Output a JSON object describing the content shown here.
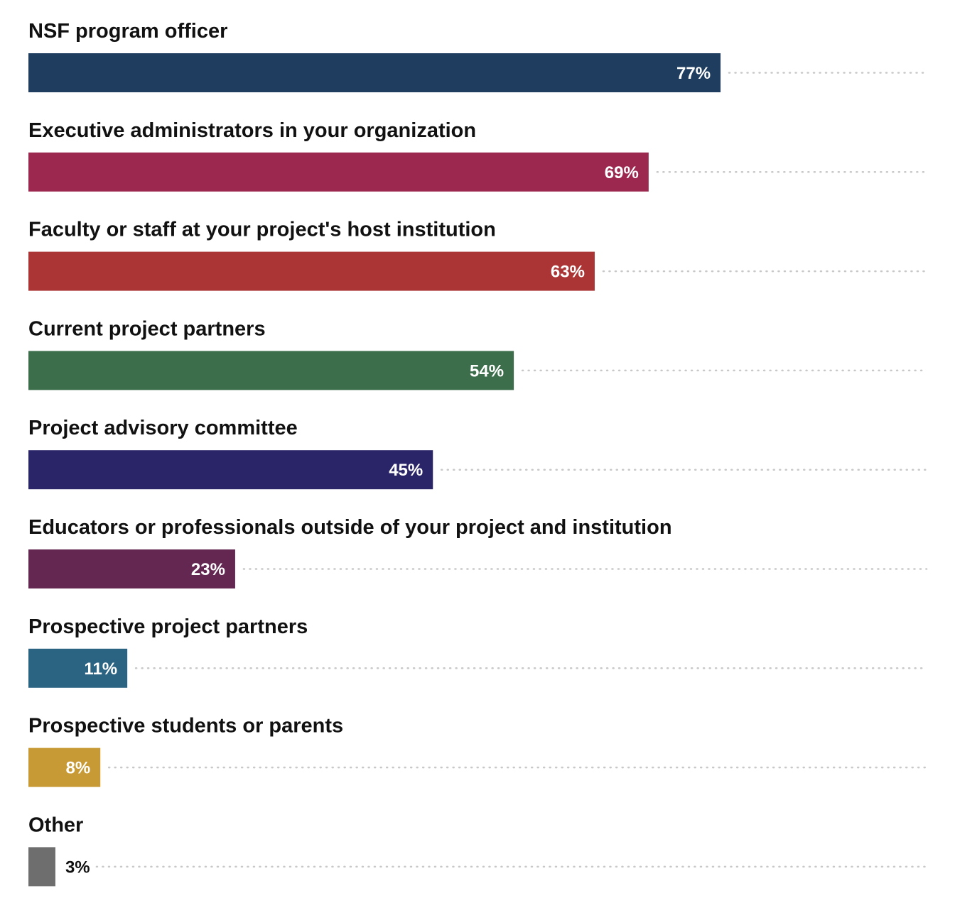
{
  "chart_data": {
    "type": "bar",
    "orientation": "horizontal",
    "title": "",
    "xlabel": "",
    "ylabel": "",
    "xlim": [
      0,
      100
    ],
    "grid": false,
    "legend": "none",
    "value_suffix": "%",
    "categories": [
      "NSF program officer",
      "Executive administrators in your organization",
      "Faculty or staff at your project's host institution",
      "Current project partners",
      "Project advisory committee",
      "Educators or professionals outside of your project and institution",
      "Prospective project partners",
      "Prospective students or parents",
      "Other"
    ],
    "values": [
      77,
      69,
      63,
      54,
      45,
      23,
      11,
      8,
      3
    ],
    "value_labels": [
      "77%",
      "69%",
      "63%",
      "54%",
      "45%",
      "23%",
      "11%",
      "8%",
      "3%"
    ],
    "colors": [
      "#1e3d5f",
      "#9c2850",
      "#ab3535",
      "#3d6e4c",
      "#2a2568",
      "#632752",
      "#2b6383",
      "#c89a35",
      "#6e6e6e"
    ],
    "label_color_inside": "#ffffff",
    "label_color_outside": "#111111"
  }
}
